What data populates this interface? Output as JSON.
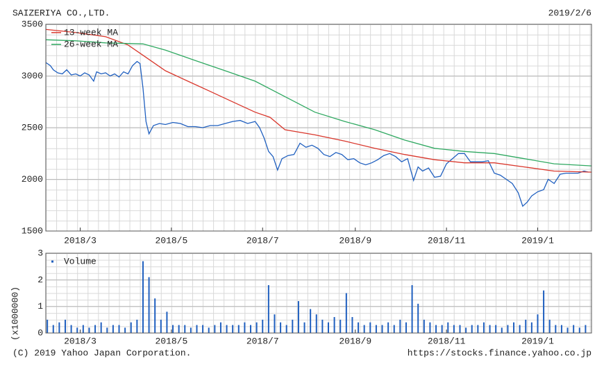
{
  "header": {
    "title": "SAIZERIYA CO.,LTD.",
    "date": "2019/2/6"
  },
  "footer": {
    "copyright": "(C) 2019 Yahoo Japan Corporation.",
    "url": "https://stocks.finance.yahoo.co.jp"
  },
  "chart_data": [
    {
      "type": "line",
      "xlim": [
        0,
        365
      ],
      "ylim": [
        1500,
        3500
      ],
      "yticks": [
        1500,
        2000,
        2500,
        3000,
        3500
      ],
      "xticks": [
        {
          "value": 23,
          "label": "2018/3"
        },
        {
          "value": 84,
          "label": "2018/5"
        },
        {
          "value": 145,
          "label": "2018/7"
        },
        {
          "value": 207,
          "label": "2018/9"
        },
        {
          "value": 268,
          "label": "2018/11"
        },
        {
          "value": 329,
          "label": "2019/1"
        }
      ],
      "grid": true,
      "series": [
        {
          "color": "#1f5fbf",
          "x": [
            0,
            3,
            5,
            8,
            11,
            14,
            17,
            20,
            23,
            26,
            29,
            32,
            34,
            37,
            40,
            43,
            46,
            49,
            52,
            55,
            58,
            61,
            63,
            65,
            67,
            69,
            72,
            76,
            80,
            85,
            90,
            95,
            100,
            105,
            110,
            115,
            120,
            125,
            130,
            135,
            140,
            143,
            146,
            149,
            152,
            155,
            158,
            162,
            166,
            170,
            174,
            178,
            182,
            186,
            190,
            194,
            198,
            202,
            206,
            210,
            214,
            218,
            222,
            226,
            230,
            234,
            238,
            242,
            246,
            249,
            252,
            256,
            260,
            264,
            268,
            272,
            276,
            280,
            284,
            288,
            292,
            296,
            300,
            304,
            308,
            312,
            316,
            319,
            322,
            325,
            329,
            333,
            336,
            340,
            344,
            348,
            352,
            356,
            360,
            363
          ],
          "values": [
            3130,
            3100,
            3060,
            3030,
            3020,
            3060,
            3010,
            3020,
            3000,
            3030,
            3010,
            2950,
            3040,
            3020,
            3030,
            3000,
            3020,
            2990,
            3040,
            3020,
            3100,
            3140,
            3120,
            2880,
            2560,
            2440,
            2520,
            2540,
            2530,
            2550,
            2540,
            2510,
            2510,
            2500,
            2520,
            2520,
            2540,
            2560,
            2570,
            2540,
            2560,
            2500,
            2400,
            2270,
            2220,
            2090,
            2200,
            2230,
            2240,
            2350,
            2310,
            2330,
            2300,
            2240,
            2220,
            2260,
            2240,
            2190,
            2200,
            2160,
            2140,
            2160,
            2190,
            2230,
            2250,
            2220,
            2170,
            2200,
            1990,
            2120,
            2080,
            2110,
            2020,
            2030,
            2150,
            2200,
            2250,
            2250,
            2170,
            2170,
            2170,
            2180,
            2060,
            2040,
            2000,
            1960,
            1870,
            1740,
            1780,
            1840,
            1880,
            1900,
            2000,
            1960,
            2050,
            2060,
            2060,
            2060,
            2080,
            2070
          ]
        },
        {
          "name": "13-week MA",
          "color": "#d9362b",
          "x": [
            0,
            20,
            40,
            55,
            65,
            80,
            95,
            110,
            125,
            140,
            150,
            160,
            180,
            200,
            220,
            240,
            260,
            280,
            300,
            320,
            340,
            365
          ],
          "values": [
            3450,
            3420,
            3380,
            3300,
            3200,
            3050,
            2950,
            2850,
            2750,
            2650,
            2600,
            2480,
            2430,
            2370,
            2300,
            2240,
            2190,
            2160,
            2160,
            2120,
            2080,
            2070
          ]
        },
        {
          "name": "26-week MA",
          "color": "#2ea860",
          "x": [
            0,
            20,
            40,
            65,
            80,
            100,
            120,
            140,
            160,
            180,
            200,
            220,
            240,
            260,
            280,
            300,
            320,
            340,
            365
          ],
          "values": [
            3350,
            3340,
            3320,
            3310,
            3250,
            3150,
            3050,
            2950,
            2800,
            2650,
            2560,
            2480,
            2380,
            2300,
            2270,
            2250,
            2200,
            2150,
            2130
          ]
        }
      ]
    },
    {
      "type": "bar",
      "ylabel": "(x1000000)",
      "xlim": [
        0,
        365
      ],
      "ylim": [
        0,
        3
      ],
      "yticks": [
        0,
        1,
        2,
        3
      ],
      "xticks": [
        {
          "value": 23,
          "label": "2018/3"
        },
        {
          "value": 84,
          "label": "2018/5"
        },
        {
          "value": 145,
          "label": "2018/7"
        },
        {
          "value": 207,
          "label": "2018/9"
        },
        {
          "value": 268,
          "label": "2018/11"
        },
        {
          "value": 329,
          "label": "2019/1"
        }
      ],
      "grid": true,
      "series": [
        {
          "name": "Volume",
          "color": "#1f5fbf",
          "x": [
            1,
            5,
            9,
            13,
            17,
            21,
            25,
            29,
            33,
            37,
            41,
            45,
            49,
            53,
            57,
            61,
            65,
            69,
            73,
            77,
            81,
            85,
            89,
            93,
            97,
            101,
            105,
            109,
            113,
            117,
            121,
            125,
            129,
            133,
            137,
            141,
            145,
            149,
            153,
            157,
            161,
            165,
            169,
            173,
            177,
            181,
            185,
            189,
            193,
            197,
            201,
            205,
            209,
            213,
            217,
            221,
            225,
            229,
            233,
            237,
            241,
            245,
            249,
            253,
            257,
            261,
            265,
            269,
            273,
            277,
            281,
            285,
            289,
            293,
            297,
            301,
            305,
            309,
            313,
            317,
            321,
            325,
            329,
            333,
            337,
            341,
            345,
            349,
            353,
            357,
            361
          ],
          "values": [
            0.5,
            0.3,
            0.4,
            0.5,
            0.3,
            0.2,
            0.3,
            0.2,
            0.3,
            0.4,
            0.2,
            0.3,
            0.3,
            0.2,
            0.4,
            0.5,
            2.7,
            2.1,
            1.3,
            0.5,
            0.8,
            0.3,
            0.3,
            0.3,
            0.2,
            0.3,
            0.3,
            0.2,
            0.3,
            0.4,
            0.3,
            0.3,
            0.3,
            0.4,
            0.3,
            0.4,
            0.5,
            1.8,
            0.7,
            0.4,
            0.3,
            0.5,
            1.2,
            0.4,
            0.9,
            0.7,
            0.5,
            0.4,
            0.6,
            0.5,
            1.5,
            0.6,
            0.4,
            0.3,
            0.4,
            0.3,
            0.3,
            0.4,
            0.3,
            0.5,
            0.4,
            1.8,
            1.1,
            0.5,
            0.4,
            0.3,
            0.3,
            0.4,
            0.3,
            0.3,
            0.2,
            0.3,
            0.3,
            0.4,
            0.3,
            0.3,
            0.2,
            0.3,
            0.4,
            0.3,
            0.5,
            0.4,
            0.7,
            1.6,
            0.5,
            0.3,
            0.3,
            0.2,
            0.3,
            0.2,
            0.3
          ]
        }
      ]
    }
  ]
}
